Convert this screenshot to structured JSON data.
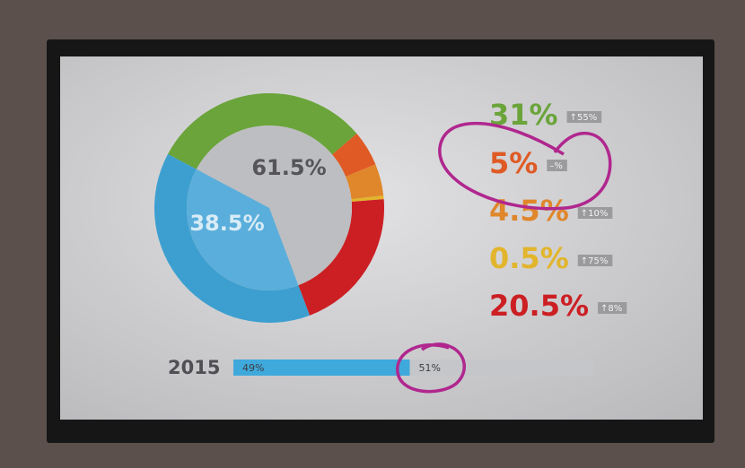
{
  "chart_data": [
    {
      "type": "donut",
      "values": [
        31,
        5,
        4.5,
        0.5,
        20.5,
        38.5
      ],
      "value_labels": [
        "31%",
        "5%",
        "4.5%",
        "0.5%",
        "20.5%",
        "38.5%"
      ],
      "changes": [
        "↑55%",
        "–%",
        "↑10%",
        "↑75%",
        "↑8%",
        null
      ],
      "colors": [
        "#6aa43a",
        "#df5a24",
        "#e0862b",
        "#e2b52c",
        "#cc1f23",
        "#3c9fd0"
      ],
      "group_label": "61.5%"
    },
    {
      "type": "stacked-bar",
      "category": "2015",
      "values": [
        49,
        51
      ],
      "value_labels": [
        "49%",
        "51%"
      ],
      "colors": [
        "#3fa9dc",
        "#c4c6ca"
      ],
      "xlim": [
        0,
        100
      ]
    }
  ]
}
